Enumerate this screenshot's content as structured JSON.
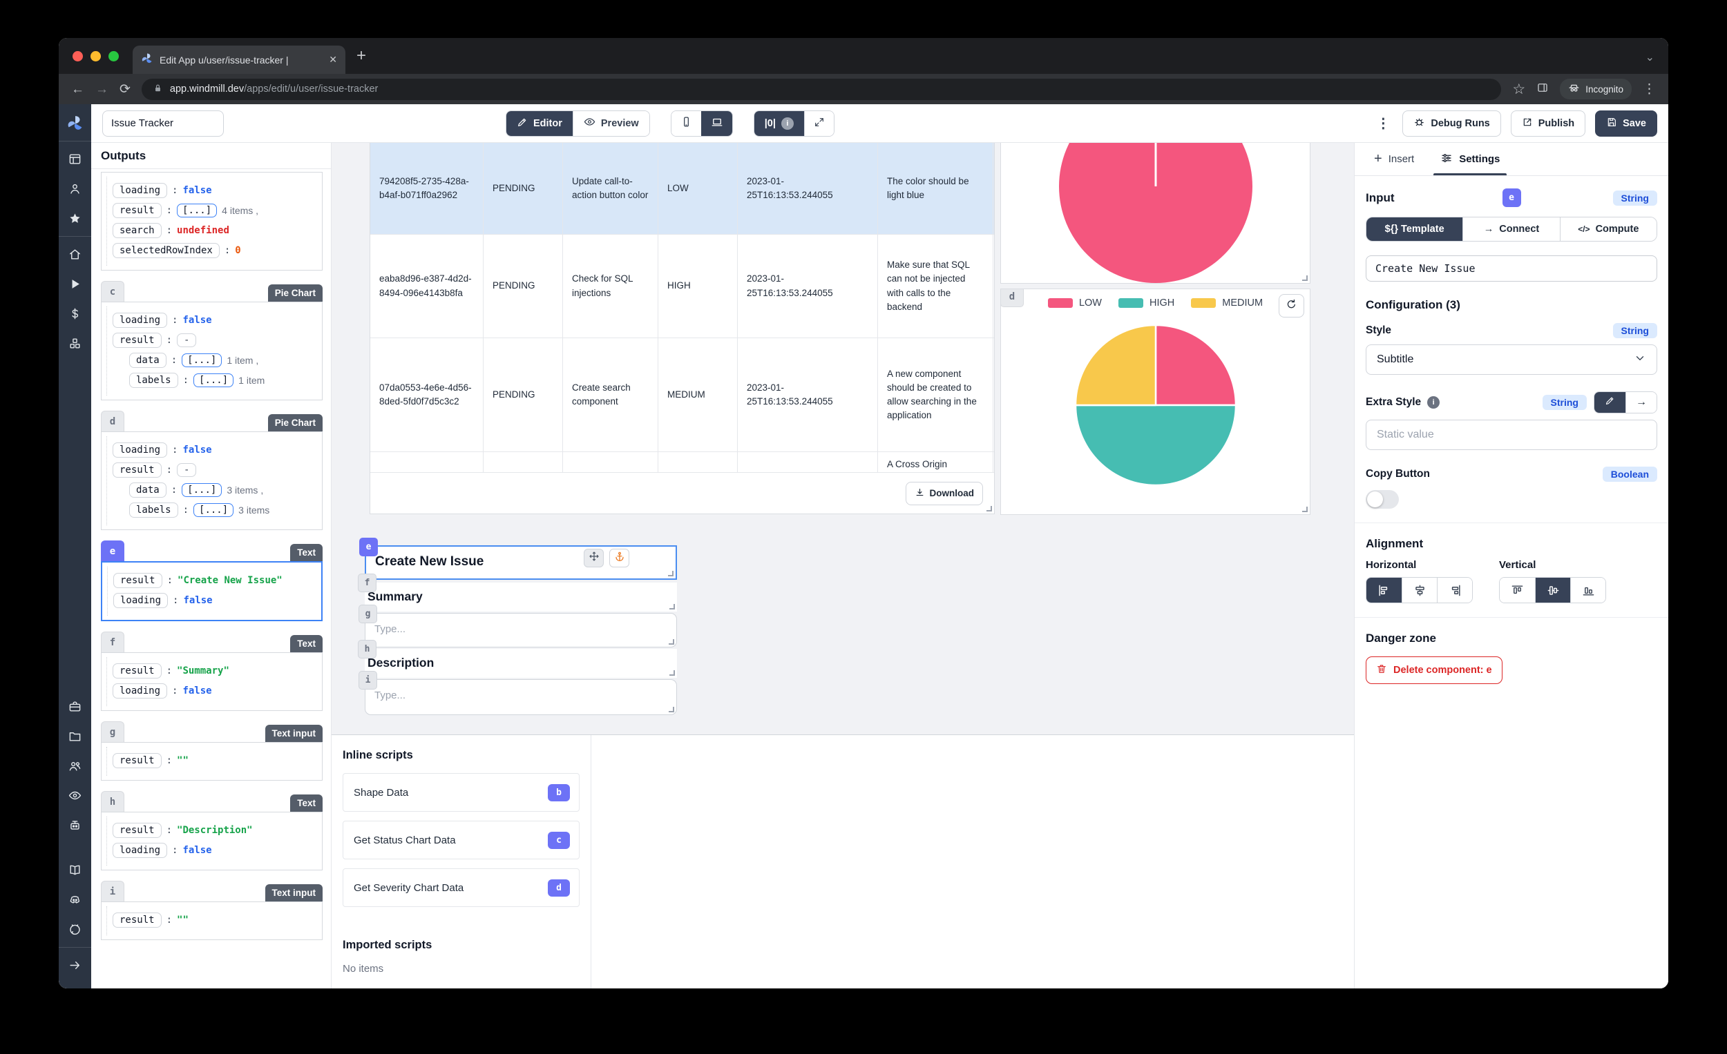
{
  "browser": {
    "tab_title": "Edit App u/user/issue-tracker |",
    "close_x": "✕",
    "new_tab": "+",
    "chevron": "⌄",
    "back": "←",
    "forward": "→",
    "reload": "⟳",
    "url_domain": "app.windmill.dev",
    "url_path": "/apps/edit/u/user/issue-tracker",
    "bookmark_star": "☆",
    "incognito_label": "Incognito",
    "kebab": "⋮"
  },
  "sidebar": {
    "groups": [
      [
        "windmill-logo"
      ],
      [
        "app-window",
        "user",
        "star"
      ],
      [
        "home",
        "play",
        "dollar",
        "cubes"
      ],
      [
        "toolbox",
        "folder",
        "users",
        "eye",
        "robot"
      ],
      [
        "book",
        "discord",
        "github"
      ],
      [
        "arrow-right"
      ]
    ]
  },
  "toolbar": {
    "app_title": "Issue Tracker",
    "editor": "Editor",
    "preview": "Preview",
    "zero_badge": "|0|",
    "kebab": "⋮",
    "debug_runs": "Debug Runs",
    "publish": "Publish",
    "save": "Save"
  },
  "outputs": {
    "header": "Outputs",
    "array_token": "[...]",
    "cards": [
      {
        "letter": null,
        "type": null,
        "selected": false,
        "rows": [
          {
            "key": "loading",
            "value": "false",
            "style": "bool"
          },
          {
            "key": "result",
            "array": true,
            "suffix": "4 items ,"
          },
          {
            "key": "search",
            "value": "undefined",
            "style": "undef"
          },
          {
            "key": "selectedRowIndex",
            "value": "0",
            "style": "num"
          }
        ]
      },
      {
        "letter": "c",
        "type": "Pie Chart",
        "selected": false,
        "rows": [
          {
            "key": "loading",
            "value": "false",
            "style": "bool"
          },
          {
            "key": "result",
            "dash": true
          },
          {
            "key": "data",
            "array": true,
            "suffix": "1 item ,",
            "indent": true
          },
          {
            "key": "labels",
            "array": true,
            "suffix": "1 item",
            "indent": true
          }
        ]
      },
      {
        "letter": "d",
        "type": "Pie Chart",
        "selected": false,
        "rows": [
          {
            "key": "loading",
            "value": "false",
            "style": "bool"
          },
          {
            "key": "result",
            "dash": true
          },
          {
            "key": "data",
            "array": true,
            "suffix": "3 items ,",
            "indent": true
          },
          {
            "key": "labels",
            "array": true,
            "suffix": "3 items",
            "indent": true
          }
        ]
      },
      {
        "letter": "e",
        "type": "Text",
        "selected": true,
        "rows": [
          {
            "key": "result",
            "value": "\"Create New Issue\"",
            "style": "str"
          },
          {
            "key": "loading",
            "value": "false",
            "style": "bool"
          }
        ]
      },
      {
        "letter": "f",
        "type": "Text",
        "selected": false,
        "rows": [
          {
            "key": "result",
            "value": "\"Summary\"",
            "style": "str"
          },
          {
            "key": "loading",
            "value": "false",
            "style": "bool"
          }
        ]
      },
      {
        "letter": "g",
        "type": "Text input",
        "selected": false,
        "rows": [
          {
            "key": "result",
            "value": "\"\"",
            "style": "str"
          }
        ]
      },
      {
        "letter": "h",
        "type": "Text",
        "selected": false,
        "rows": [
          {
            "key": "result",
            "value": "\"Description\"",
            "style": "str"
          },
          {
            "key": "loading",
            "value": "false",
            "style": "bool"
          }
        ]
      },
      {
        "letter": "i",
        "type": "Text input",
        "selected": false,
        "rows": [
          {
            "key": "result",
            "value": "\"\"",
            "style": "str"
          }
        ]
      }
    ]
  },
  "canvas": {
    "table": {
      "download_label": "Download",
      "rows": [
        {
          "selected": true,
          "cells": [
            "794208f5-2735-428a-b4af-b071ff0a2962",
            "PENDING",
            "Update call-to-action button color",
            "LOW",
            "2023-01-25T16:13:53.244055",
            "The color should be light blue"
          ]
        },
        {
          "selected": false,
          "cells": [
            "eaba8d96-e387-4d2d-8494-096e4143b8fa",
            "PENDING",
            "Check for SQL injections",
            "HIGH",
            "2023-01-25T16:13:53.244055",
            "Make sure that SQL can not be injected with calls to the backend"
          ]
        },
        {
          "selected": false,
          "cells": [
            "07da0553-4e6e-4d56-8ded-5fd0f7d5c3c2",
            "PENDING",
            "Create search component",
            "MEDIUM",
            "2023-01-25T16:13:53.244055",
            "A new component should be created to allow searching in the application"
          ]
        },
        {
          "selected": false,
          "cells": [
            "",
            "",
            "",
            "",
            "",
            "A Cross Origin"
          ]
        }
      ]
    },
    "pie_c": {
      "slices": [
        {
          "label": "",
          "value": 100,
          "color": "#f4567e"
        }
      ]
    },
    "pie_d": {
      "legend": [
        {
          "label": "LOW",
          "color": "#f4567e"
        },
        {
          "label": "HIGH",
          "color": "#46bdb2"
        },
        {
          "label": "MEDIUM",
          "color": "#f8c84b"
        }
      ],
      "slices": [
        {
          "label": "LOW",
          "value": 25,
          "color": "#f4567e"
        },
        {
          "label": "HIGH",
          "value": 50,
          "color": "#46bdb2"
        },
        {
          "label": "MEDIUM",
          "value": 25,
          "color": "#f8c84b"
        }
      ],
      "chip": "d"
    },
    "form": {
      "e_chip": "e",
      "e_text": "Create New Issue",
      "f_chip": "f",
      "f_text": "Summary",
      "g_chip": "g",
      "g_placeholder": "Type...",
      "h_chip": "h",
      "h_text": "Description",
      "i_chip": "i",
      "i_placeholder": "Type..."
    }
  },
  "scripts": {
    "inline_title": "Inline scripts",
    "items": [
      {
        "label": "Shape Data",
        "badge": "b"
      },
      {
        "label": "Get Status Chart Data",
        "badge": "c"
      },
      {
        "label": "Get Severity Chart Data",
        "badge": "d"
      }
    ],
    "imported_title": "Imported scripts",
    "empty": "No items"
  },
  "settings": {
    "tab_insert": "Insert",
    "tab_settings": "Settings",
    "input_title": "Input",
    "component_chip": "e",
    "type_badge": "String",
    "seg_template": "${} Template",
    "seg_connect": "Connect",
    "seg_compute": "Compute",
    "template_value": "Create New Issue",
    "configuration_title": "Configuration (3)",
    "style_label": "Style",
    "style_type": "String",
    "style_value": "Subtitle",
    "extra_style_label": "Extra Style",
    "extra_style_type": "String",
    "extra_style_placeholder": "Static value",
    "copy_button_label": "Copy Button",
    "copy_button_type": "Boolean",
    "alignment_title": "Alignment",
    "horizontal_label": "Horizontal",
    "vertical_label": "Vertical",
    "alignment": {
      "horizontal": {
        "options": [
          "align-h-left",
          "align-h-center",
          "align-h-right"
        ],
        "active": 0
      },
      "vertical": {
        "options": [
          "align-v-top",
          "align-v-center",
          "align-v-bottom"
        ],
        "active": 1
      }
    },
    "danger_title": "Danger zone",
    "delete_label": "Delete component: e"
  },
  "chart_data": [
    {
      "type": "pie",
      "title": "",
      "categories": [
        ""
      ],
      "values": [
        100
      ],
      "colors": [
        "#f4567e"
      ],
      "legend_position": "none"
    },
    {
      "type": "pie",
      "title": "",
      "categories": [
        "LOW",
        "HIGH",
        "MEDIUM"
      ],
      "values": [
        25,
        50,
        25
      ],
      "colors": [
        "#f4567e",
        "#46bdb2",
        "#f8c84b"
      ],
      "legend_position": "top"
    }
  ]
}
